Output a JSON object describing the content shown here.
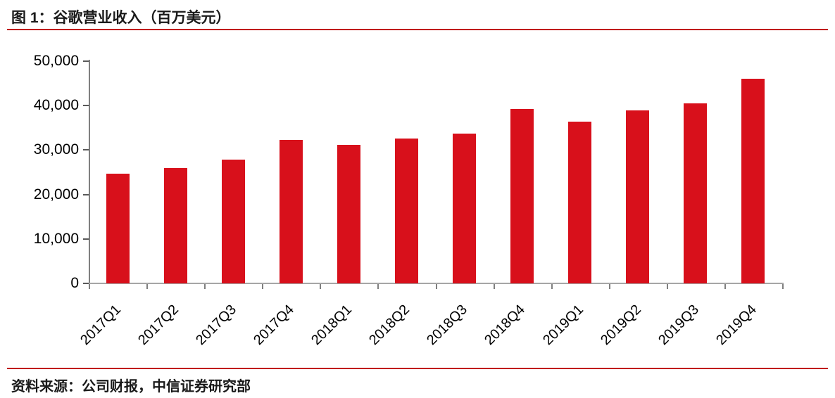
{
  "page": {
    "figure_title": "图 1：谷歌营业收入（百万美元）",
    "source_note": "资料来源：公司财报，中信证券研究部"
  },
  "colors": {
    "bar": "#d8101b",
    "rule": "#c00000",
    "x_axis": "#a6a6a6",
    "y_axis": "#808080",
    "tick": "#595959",
    "text": "#000000"
  },
  "chart_data": {
    "type": "bar",
    "title": "图 1：谷歌营业收入（百万美元）",
    "series_name": "谷歌营业收入（百万美元）",
    "categories": [
      "2017Q1",
      "2017Q2",
      "2017Q3",
      "2017Q4",
      "2018Q1",
      "2018Q2",
      "2018Q3",
      "2018Q4",
      "2019Q1",
      "2019Q2",
      "2019Q3",
      "2019Q4"
    ],
    "values": [
      24750,
      26010,
      27772,
      32323,
      31146,
      32657,
      33740,
      39276,
      36339,
      38944,
      40499,
      46075
    ],
    "xlabel": "",
    "ylabel": "",
    "ylim": [
      0,
      50000
    ],
    "yticks": [
      0,
      10000,
      20000,
      30000,
      40000,
      50000
    ],
    "ytick_labels": [
      "0",
      "10,000",
      "20,000",
      "30,000",
      "40,000",
      "50,000"
    ],
    "xtick_rotation_deg": 45,
    "grid": false,
    "legend_position": "none",
    "bar_color": "#d8101b",
    "source": "资料来源：公司财报，中信证券研究部"
  }
}
